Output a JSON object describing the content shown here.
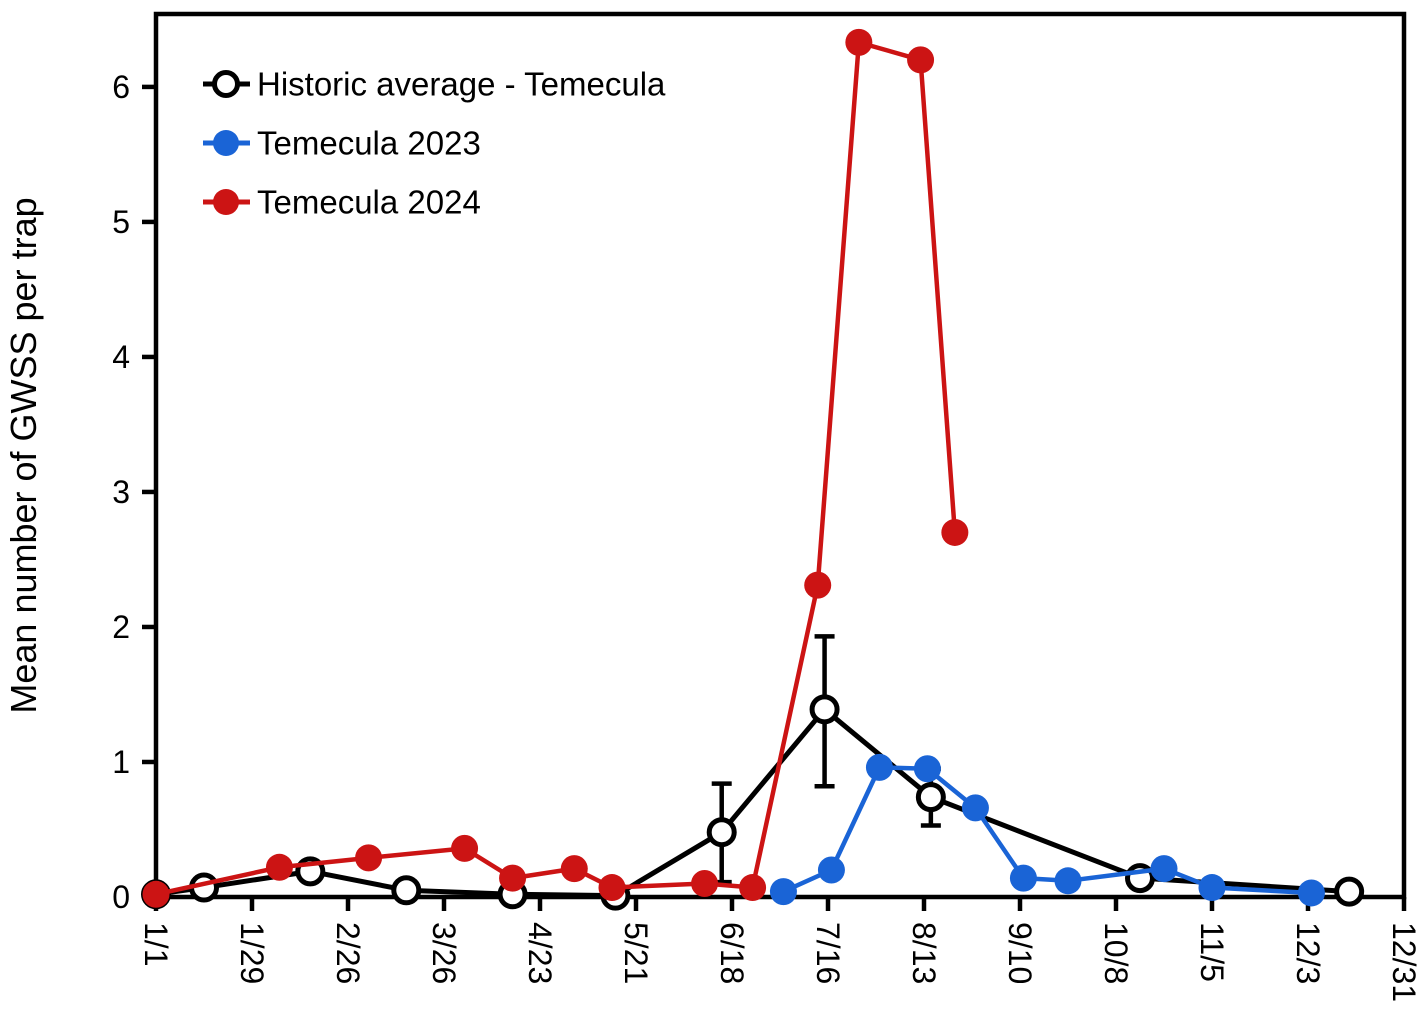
{
  "chart_data": {
    "type": "line",
    "title": "",
    "xlabel": "",
    "ylabel": "Mean number of GWSS per trap",
    "ylim": [
      0,
      6.54
    ],
    "yticks": [
      0,
      1,
      2,
      3,
      4,
      5,
      6
    ],
    "xtick_labels": [
      "1/1",
      "1/29",
      "2/26",
      "3/26",
      "4/23",
      "5/21",
      "6/18",
      "7/16",
      "8/13",
      "9/10",
      "10/8",
      "11/5",
      "12/3",
      "12/31"
    ],
    "x_axis_days_total": 364,
    "grid": false,
    "legend_position": "top-left",
    "axis_color": "#000000",
    "background_color": "#ffffff",
    "series": [
      {
        "name": "Historic average - Temecula",
        "color": "#000000",
        "marker": "open-circle",
        "points": [
          {
            "date": "1/1",
            "y": 0.02
          },
          {
            "date": "1/15",
            "y": 0.07
          },
          {
            "date": "2/15",
            "y": 0.19
          },
          {
            "date": "3/15",
            "y": 0.05
          },
          {
            "date": "4/15",
            "y": 0.02
          },
          {
            "date": "5/15",
            "y": 0.01
          },
          {
            "date": "6/15",
            "y": 0.48,
            "err_lo": 0.37,
            "err_hi": 0.36
          },
          {
            "date": "7/15",
            "y": 1.39,
            "err_lo": 0.57,
            "err_hi": 0.54
          },
          {
            "date": "8/15",
            "y": 0.74,
            "err_lo": 0.21,
            "err_hi": 0.21
          },
          {
            "date": "10/15",
            "y": 0.14
          },
          {
            "date": "12/15",
            "y": 0.04
          }
        ]
      },
      {
        "name": "Temecula 2023",
        "color": "#1A64D6",
        "marker": "filled-circle",
        "points": [
          {
            "date": "7/3",
            "y": 0.04
          },
          {
            "date": "7/17",
            "y": 0.2
          },
          {
            "date": "7/31",
            "y": 0.96
          },
          {
            "date": "8/14",
            "y": 0.95
          },
          {
            "date": "8/28",
            "y": 0.66
          },
          {
            "date": "9/11",
            "y": 0.14
          },
          {
            "date": "9/24",
            "y": 0.12
          },
          {
            "date": "10/22",
            "y": 0.21
          },
          {
            "date": "11/5",
            "y": 0.07
          },
          {
            "date": "12/4",
            "y": 0.03
          }
        ]
      },
      {
        "name": "Temecula 2024",
        "color": "#CC1414",
        "marker": "filled-circle",
        "points": [
          {
            "date": "1/1",
            "y": 0.02
          },
          {
            "date": "2/6",
            "y": 0.22
          },
          {
            "date": "3/4",
            "y": 0.29
          },
          {
            "date": "4/1",
            "y": 0.36
          },
          {
            "date": "4/15",
            "y": 0.14
          },
          {
            "date": "5/3",
            "y": 0.21
          },
          {
            "date": "5/14",
            "y": 0.07
          },
          {
            "date": "6/10",
            "y": 0.1
          },
          {
            "date": "6/24",
            "y": 0.07
          },
          {
            "date": "7/13",
            "y": 2.31
          },
          {
            "date": "7/25",
            "y": 6.33
          },
          {
            "date": "8/12",
            "y": 6.2
          },
          {
            "date": "8/22",
            "y": 2.7
          }
        ]
      }
    ]
  }
}
